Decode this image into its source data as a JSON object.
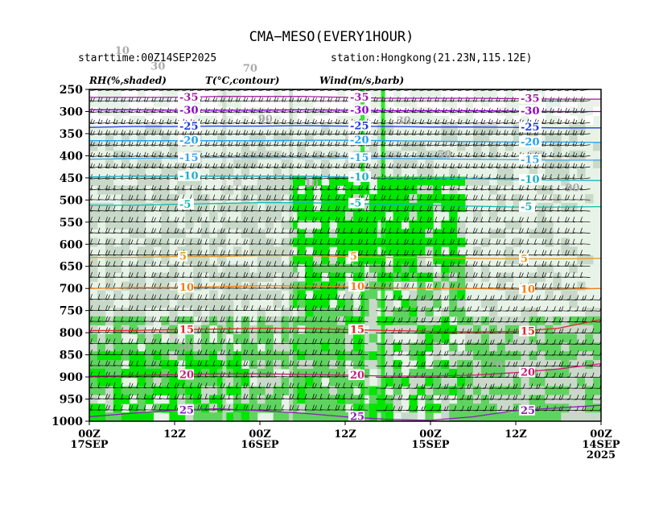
{
  "title": "CMA−MESO(EVERY1HOUR)",
  "starttime": "starttime:00Z14SEP2025",
  "station": "station:Hongkong(21.23N,115.12E)",
  "headers": {
    "rh": "RH(%,shaded)",
    "temp": "T(°C,contour)",
    "wind": "Wind(m/s,barb)"
  },
  "chart_data": {
    "type": "heatmap",
    "description_fields": [
      "rh_shading",
      "temperature_contours",
      "wind_barbs"
    ],
    "y_axis": {
      "label": "",
      "unit": "hPa",
      "ticks": [
        250,
        300,
        350,
        400,
        450,
        500,
        550,
        600,
        650,
        700,
        750,
        800,
        850,
        900,
        950,
        1000
      ],
      "range": [
        250,
        1000
      ],
      "inverted": true
    },
    "x_axis": {
      "label": "",
      "ticks": [
        {
          "time_hours": 72,
          "label": "00Z",
          "label2": "17SEP",
          "label3": ""
        },
        {
          "time_hours": 60,
          "label": "12Z",
          "label2": "",
          "label3": ""
        },
        {
          "time_hours": 48,
          "label": "00Z",
          "label2": "16SEP",
          "label3": ""
        },
        {
          "time_hours": 36,
          "label": "12Z",
          "label2": "",
          "label3": ""
        },
        {
          "time_hours": 24,
          "label": "00Z",
          "label2": "15SEP",
          "label3": ""
        },
        {
          "time_hours": 12,
          "label": "12Z",
          "label2": "",
          "label3": ""
        },
        {
          "time_hours": 0,
          "label": "00Z",
          "label2": "14SEP",
          "label3": "2025"
        }
      ],
      "range": [
        72,
        0
      ]
    },
    "rh_levels": [
      30,
      50,
      70,
      90
    ],
    "rh_colors": [
      "#ffffff",
      "#e8f3e8",
      "#c9d9c9",
      "#5fd35f",
      "#00e600"
    ],
    "temperature_contours": [
      {
        "value": -35,
        "label": "-35",
        "color": "#a020a0",
        "pressures": [
          268,
          268,
          268,
          266,
          266,
          266,
          268,
          270,
          270,
          270,
          271,
          272,
          272
        ]
      },
      {
        "value": -30,
        "label": "-30",
        "color": "#8b00c8",
        "pressures": [
          296,
          296,
          297,
          297,
          297,
          296,
          297,
          298,
          298,
          298,
          299,
          300,
          300
        ]
      },
      {
        "value": -25,
        "label": "-25",
        "color": "#1e3cdc",
        "pressures": [
          336,
          334,
          334,
          333,
          333,
          332,
          333,
          334,
          335,
          335,
          336,
          337,
          337
        ]
      },
      {
        "value": -20,
        "label": "-20",
        "color": "#1ea0f0",
        "pressures": [
          366,
          366,
          366,
          366,
          366,
          365,
          365,
          366,
          367,
          368,
          369,
          369,
          370
        ]
      },
      {
        "value": -15,
        "label": "-15",
        "color": "#3fa6e8",
        "pressures": [
          408,
          406,
          405,
          404,
          404,
          404,
          405,
          406,
          407,
          408,
          409,
          410,
          410
        ]
      },
      {
        "value": -10,
        "label": "-10",
        "color": "#19b0c8",
        "pressures": [
          448,
          446,
          446,
          446,
          446,
          446,
          448,
          450,
          450,
          452,
          454,
          455,
          456
        ]
      },
      {
        "value": -5,
        "label": "-5",
        "color": "#10b9b0",
        "pressures": [
          512,
          512,
          510,
          508,
          506,
          506,
          508,
          510,
          512,
          514,
          516,
          516,
          515
        ]
      },
      {
        "value": 5,
        "label": "5",
        "color": "#e69b28",
        "pressures": [
          630,
          630,
          628,
          628,
          626,
          626,
          628,
          630,
          630,
          632,
          633,
          633,
          632
        ]
      },
      {
        "value": 10,
        "label": "10",
        "color": "#f07d14",
        "pressures": [
          700,
          698,
          698,
          696,
          694,
          694,
          696,
          698,
          700,
          700,
          702,
          702,
          700
        ]
      },
      {
        "value": 15,
        "label": "15",
        "color": "#dc2828",
        "pressures": [
          795,
          795,
          793,
          792,
          790,
          790,
          793,
          795,
          797,
          798,
          797,
          790,
          770
        ]
      },
      {
        "value": 20,
        "label": "20",
        "color": "#c81e78",
        "pressures": [
          898,
          897,
          895,
          893,
          893,
          894,
          896,
          898,
          898,
          896,
          890,
          882,
          870
        ]
      },
      {
        "value": 25,
        "label": "25",
        "color": "#8c1eb4",
        "pressures": [
          990,
          982,
          975,
          972,
          976,
          982,
          990,
          996,
          998,
          990,
          976,
          970,
          964
        ]
      }
    ],
    "contour_times": [
      72,
      66,
      60,
      54,
      48,
      42,
      36,
      30,
      24,
      18,
      12,
      6,
      0
    ],
    "rh_labels": [
      "10",
      "30",
      "50",
      "70",
      "90"
    ],
    "wind_barbs": "dense grid of wind barbs at every level and hour, predominantly westerly aloft and easterly near surface"
  }
}
